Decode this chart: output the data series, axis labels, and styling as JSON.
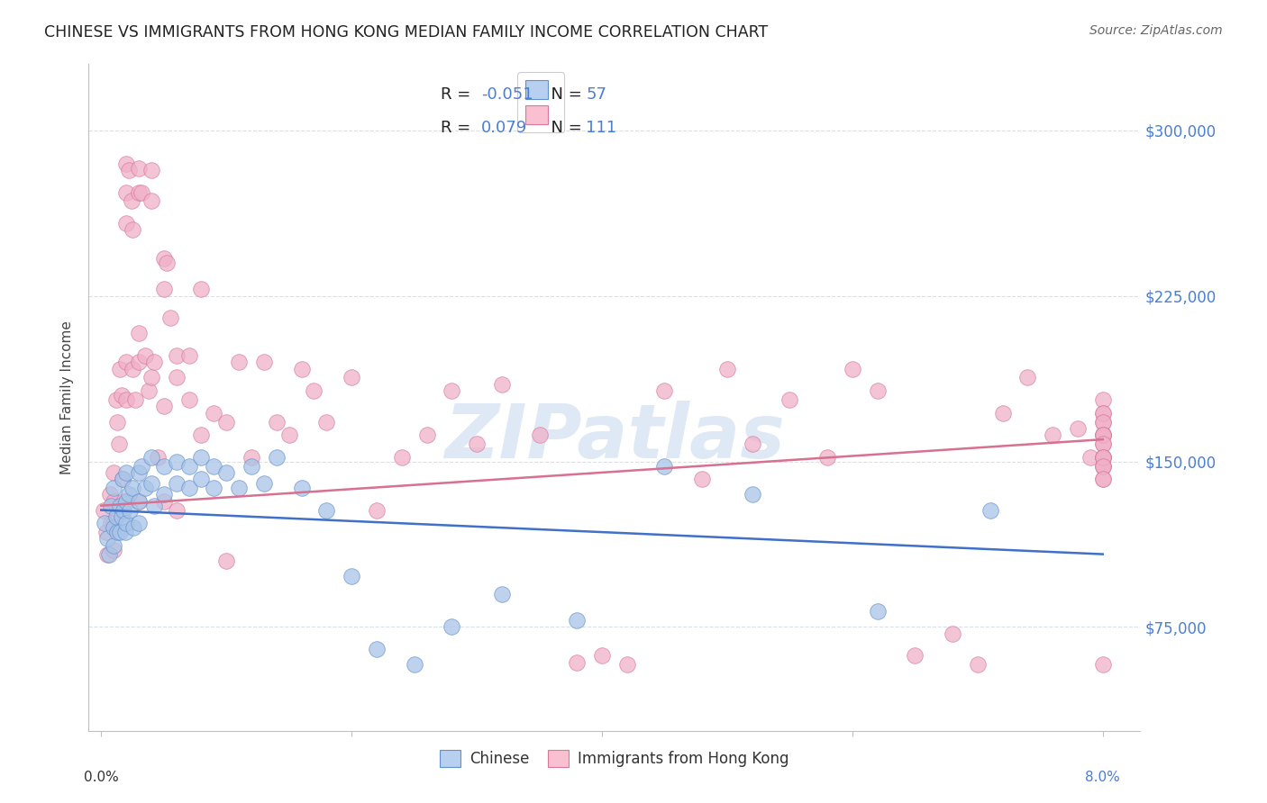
{
  "title": "CHINESE VS IMMIGRANTS FROM HONG KONG MEDIAN FAMILY INCOME CORRELATION CHART",
  "source": "Source: ZipAtlas.com",
  "ylabel": "Median Family Income",
  "yticks": [
    75000,
    150000,
    225000,
    300000
  ],
  "ytick_labels": [
    "$75,000",
    "$150,000",
    "$225,000",
    "$300,000"
  ],
  "xlim": [
    -0.001,
    0.083
  ],
  "ylim": [
    28000,
    330000
  ],
  "watermark": "ZIPatlas",
  "series1_color": "#a8c4e8",
  "series1_edge": "#6090cc",
  "series2_color": "#f0b0c8",
  "series2_edge": "#d87898",
  "trendline1_color": "#4070c8",
  "trendline2_color": "#d87090",
  "background_color": "#ffffff",
  "grid_color": "#d8e0ec",
  "legend1_face": "#b8d0f0",
  "legend1_edge": "#6090cc",
  "legend2_face": "#f8c0d0",
  "legend2_edge": "#d87898",
  "R1": "-0.051",
  "N1": "57",
  "R2": "0.079",
  "N2": "111",
  "val_color": "#4a7fd4",
  "chinese_x": [
    0.0003,
    0.0005,
    0.0006,
    0.0008,
    0.001,
    0.001,
    0.001,
    0.0012,
    0.0013,
    0.0015,
    0.0015,
    0.0016,
    0.0017,
    0.0018,
    0.0019,
    0.002,
    0.002,
    0.002,
    0.0022,
    0.0023,
    0.0025,
    0.0026,
    0.003,
    0.003,
    0.003,
    0.0032,
    0.0035,
    0.004,
    0.004,
    0.0042,
    0.005,
    0.005,
    0.006,
    0.006,
    0.007,
    0.007,
    0.008,
    0.008,
    0.009,
    0.009,
    0.01,
    0.011,
    0.012,
    0.013,
    0.014,
    0.016,
    0.018,
    0.02,
    0.022,
    0.025,
    0.028,
    0.032,
    0.038,
    0.045,
    0.052,
    0.062,
    0.071
  ],
  "chinese_y": [
    122000,
    115000,
    108000,
    130000,
    138000,
    120000,
    112000,
    125000,
    118000,
    130000,
    118000,
    125000,
    142000,
    128000,
    118000,
    145000,
    132000,
    122000,
    135000,
    128000,
    138000,
    120000,
    145000,
    132000,
    122000,
    148000,
    138000,
    152000,
    140000,
    130000,
    148000,
    135000,
    150000,
    140000,
    148000,
    138000,
    152000,
    142000,
    148000,
    138000,
    145000,
    138000,
    148000,
    140000,
    152000,
    138000,
    128000,
    98000,
    65000,
    58000,
    75000,
    90000,
    78000,
    148000,
    135000,
    82000,
    128000
  ],
  "hk_x": [
    0.0002,
    0.0004,
    0.0005,
    0.0007,
    0.0008,
    0.001,
    0.001,
    0.001,
    0.001,
    0.0012,
    0.0013,
    0.0014,
    0.0015,
    0.0016,
    0.0017,
    0.0018,
    0.002,
    0.002,
    0.002,
    0.002,
    0.002,
    0.0022,
    0.0024,
    0.0025,
    0.0025,
    0.0027,
    0.003,
    0.003,
    0.003,
    0.003,
    0.003,
    0.0032,
    0.0035,
    0.0038,
    0.004,
    0.004,
    0.004,
    0.0042,
    0.0045,
    0.005,
    0.005,
    0.005,
    0.005,
    0.0052,
    0.0055,
    0.006,
    0.006,
    0.006,
    0.007,
    0.007,
    0.008,
    0.008,
    0.009,
    0.01,
    0.01,
    0.011,
    0.012,
    0.013,
    0.014,
    0.015,
    0.016,
    0.017,
    0.018,
    0.02,
    0.022,
    0.024,
    0.026,
    0.028,
    0.03,
    0.032,
    0.035,
    0.038,
    0.04,
    0.042,
    0.045,
    0.048,
    0.05,
    0.052,
    0.055,
    0.058,
    0.06,
    0.062,
    0.065,
    0.068,
    0.07,
    0.072,
    0.074,
    0.076,
    0.078,
    0.079,
    0.08,
    0.08,
    0.08,
    0.08,
    0.08,
    0.08,
    0.08,
    0.08,
    0.08,
    0.08,
    0.08,
    0.08,
    0.08,
    0.08,
    0.08,
    0.08,
    0.08,
    0.08,
    0.08,
    0.08,
    0.08
  ],
  "hk_y": [
    128000,
    118000,
    108000,
    135000,
    122000,
    145000,
    132000,
    122000,
    110000,
    178000,
    168000,
    158000,
    192000,
    180000,
    142000,
    132000,
    285000,
    272000,
    258000,
    195000,
    178000,
    282000,
    268000,
    255000,
    192000,
    178000,
    283000,
    272000,
    208000,
    195000,
    132000,
    272000,
    198000,
    182000,
    282000,
    268000,
    188000,
    195000,
    152000,
    242000,
    228000,
    175000,
    132000,
    240000,
    215000,
    198000,
    188000,
    128000,
    198000,
    178000,
    228000,
    162000,
    172000,
    105000,
    168000,
    195000,
    152000,
    195000,
    168000,
    162000,
    192000,
    182000,
    168000,
    188000,
    128000,
    152000,
    162000,
    182000,
    158000,
    185000,
    162000,
    59000,
    62000,
    58000,
    182000,
    142000,
    192000,
    158000,
    178000,
    152000,
    192000,
    182000,
    62000,
    72000,
    58000,
    172000,
    188000,
    162000,
    165000,
    152000,
    178000,
    162000,
    172000,
    58000,
    152000,
    162000,
    168000,
    172000,
    168000,
    162000,
    158000,
    152000,
    148000,
    162000,
    158000,
    152000,
    148000,
    142000,
    152000,
    148000,
    142000
  ]
}
